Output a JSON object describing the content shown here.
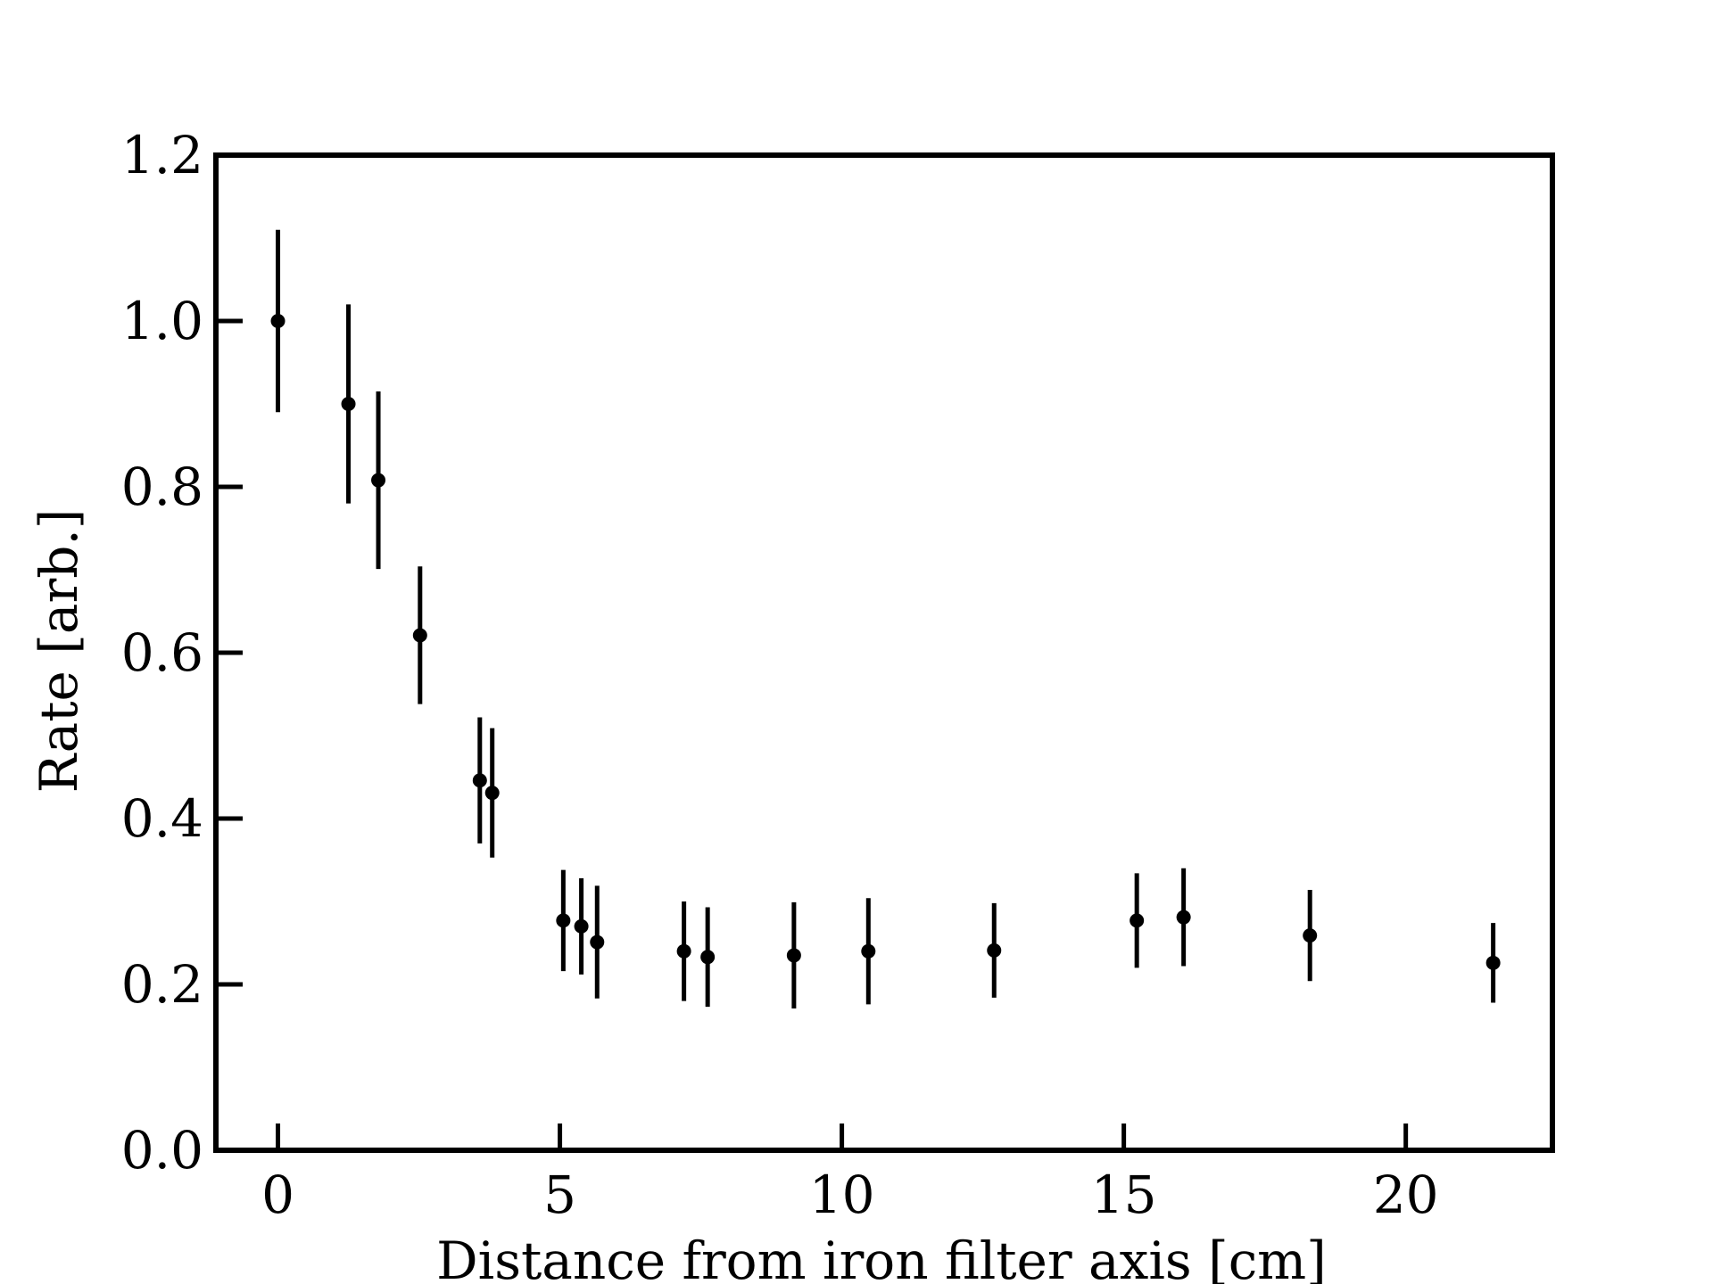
{
  "chart_data": {
    "type": "scatter",
    "title": "",
    "xlabel": "Distance from iron filter axis [cm]",
    "ylabel": "Rate [arb.]",
    "xlim": [
      -1.1,
      22.6
    ],
    "ylim": [
      0.0,
      1.2
    ],
    "xticks": [
      0,
      5,
      10,
      15,
      20
    ],
    "xtick_labels": [
      "0",
      "5",
      "10",
      "15",
      "20"
    ],
    "yticks": [
      0.0,
      0.2,
      0.4,
      0.6,
      0.8,
      1.0,
      1.2
    ],
    "ytick_labels": [
      "0.0",
      "0.2",
      "0.4",
      "0.6",
      "0.8",
      "1.0",
      "1.2"
    ],
    "grid": false,
    "legend": false,
    "color": "#000000",
    "series": [
      {
        "x": [
          0.0,
          1.25,
          1.78,
          2.52,
          3.58,
          3.8,
          5.06,
          5.38,
          5.66,
          7.2,
          7.62,
          9.15,
          10.47,
          12.7,
          15.23,
          16.06,
          18.3,
          21.55
        ],
        "y": [
          1.0,
          0.9,
          0.808,
          0.621,
          0.446,
          0.431,
          0.277,
          0.27,
          0.251,
          0.24,
          0.233,
          0.235,
          0.24,
          0.241,
          0.277,
          0.281,
          0.259,
          0.226
        ],
        "yerr": [
          0.11,
          0.12,
          0.107,
          0.083,
          0.076,
          0.078,
          0.061,
          0.058,
          0.068,
          0.06,
          0.06,
          0.064,
          0.064,
          0.057,
          0.057,
          0.059,
          0.055,
          0.048
        ]
      }
    ]
  }
}
